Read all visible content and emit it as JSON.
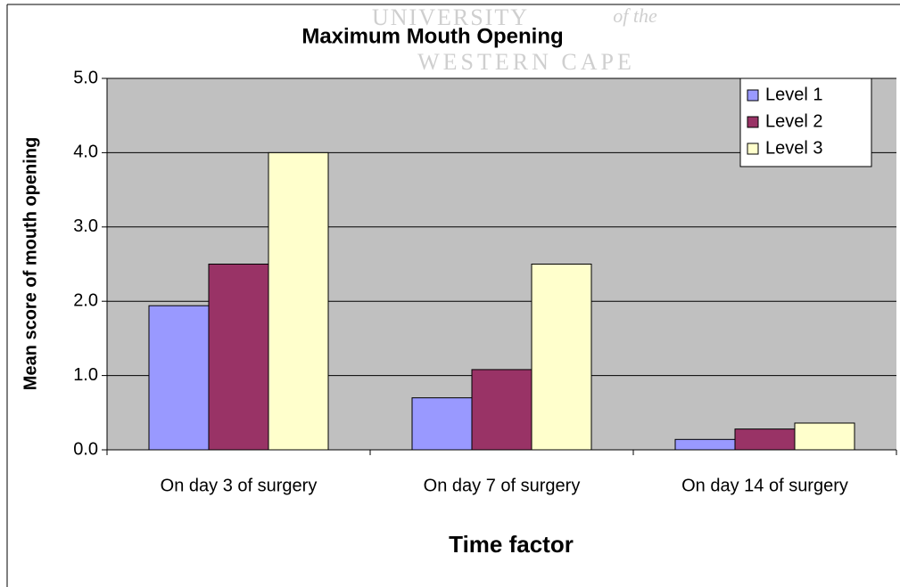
{
  "chart_data": {
    "type": "bar",
    "title": "Maximum Mouth Opening",
    "watermark": [
      "UNIVERSITY",
      "of the",
      "WESTERN CAPE"
    ],
    "ylabel": "Mean score of mouth opening",
    "xlabel": "Time factor",
    "categories": [
      "On day 3 of surgery",
      "On day 7 of surgery",
      "On day 14 of surgery"
    ],
    "series": [
      {
        "name": "Level 1",
        "color": "#9999ff",
        "values": [
          1.94,
          0.7,
          0.14
        ]
      },
      {
        "name": "Level 2",
        "color": "#993366",
        "values": [
          2.5,
          1.08,
          0.28
        ]
      },
      {
        "name": "Level 3",
        "color": "#ffffcc",
        "values": [
          4.0,
          2.5,
          0.36
        ]
      }
    ],
    "ylim": [
      0,
      5
    ],
    "yticks": [
      {
        "value": 0,
        "label": "0.0"
      },
      {
        "value": 1,
        "label": "1.0"
      },
      {
        "value": 2,
        "label": "2.0"
      },
      {
        "value": 3,
        "label": "3.0"
      },
      {
        "value": 4,
        "label": "4.0"
      },
      {
        "value": 5,
        "label": "5.0"
      }
    ],
    "grid": true,
    "legend": "top-right"
  }
}
